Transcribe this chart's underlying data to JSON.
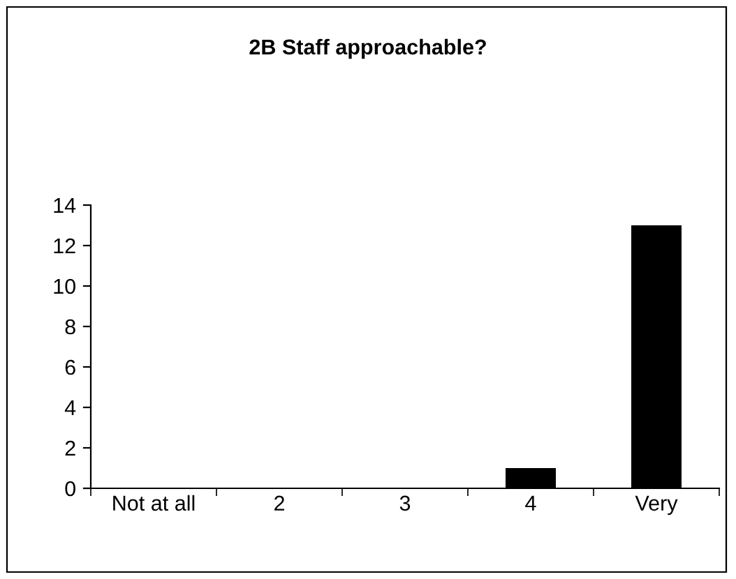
{
  "chart_data": {
    "type": "bar",
    "title": "2B Staff approachable?",
    "categories": [
      "Not at all",
      "2",
      "3",
      "4",
      "Very"
    ],
    "values": [
      0,
      0,
      0,
      1,
      13
    ],
    "color": "#000000",
    "ylim": [
      0,
      14
    ],
    "yticks": [
      0,
      2,
      4,
      6,
      8,
      10,
      12,
      14
    ],
    "grid": false,
    "legend": false
  }
}
